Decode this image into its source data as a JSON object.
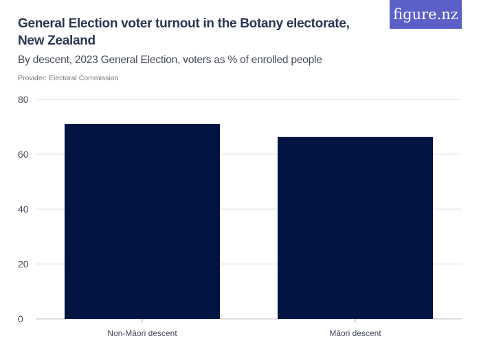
{
  "title": "General Election voter turnout in the Botany electorate, New Zealand",
  "subtitle": "By descent, 2023 General Election, voters as % of enrolled people",
  "provider": "Provider: Electoral Commission",
  "logo": "figure.nz",
  "colors": {
    "bar": "#031442",
    "logo_bg": "#5b5fc7"
  },
  "chart_data": {
    "type": "bar",
    "categories": [
      "Non-Māori descent",
      "Māori descent"
    ],
    "values": [
      71.0,
      66.3
    ],
    "yticks": [
      0,
      20,
      40,
      60,
      80
    ],
    "ylim": [
      0,
      80
    ],
    "grid": true,
    "xlabel": "",
    "ylabel": ""
  }
}
